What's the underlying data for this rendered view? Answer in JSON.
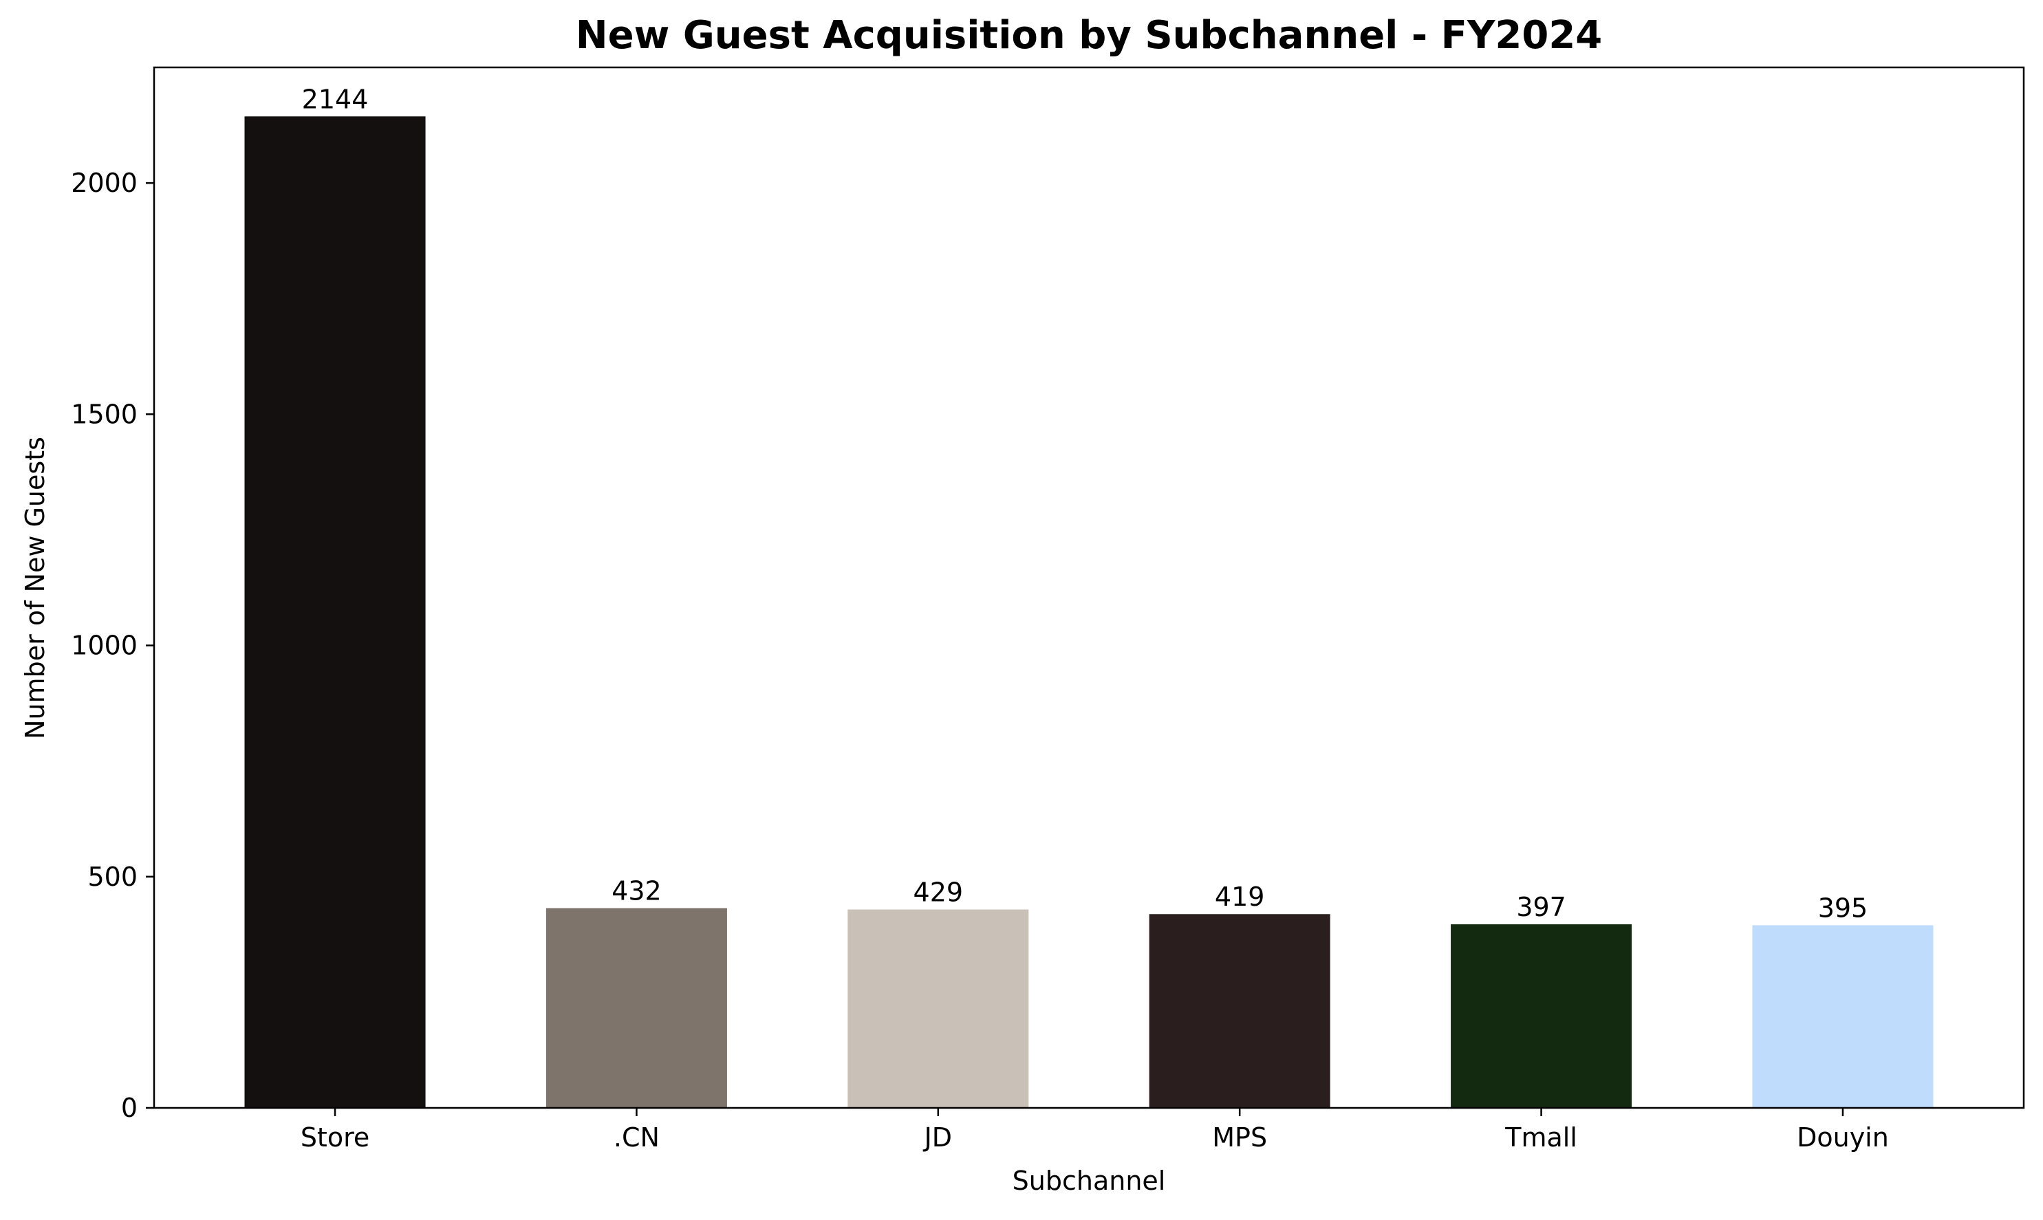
{
  "chart_data": {
    "type": "bar",
    "title": "New Guest Acquisition by Subchannel - FY2024",
    "xlabel": "Subchannel",
    "ylabel": "Number of New Guests",
    "categories": [
      "Store",
      ".CN",
      "JD",
      "MPS",
      "Tmall",
      "Douyin"
    ],
    "values": [
      2144,
      432,
      429,
      419,
      397,
      395
    ],
    "data_labels": [
      "2144",
      "432",
      "429",
      "419",
      "397",
      "395"
    ],
    "colors": [
      "#141010",
      "#7f746b",
      "#c9c1b8",
      "#2a1f1e",
      "#142a10",
      "#c0dcfc"
    ],
    "ylim": [
      0,
      2250
    ],
    "yticks": [
      0,
      500,
      1000,
      1500,
      2000
    ],
    "ytick_labels": [
      "0",
      "500",
      "1000",
      "1500",
      "2000"
    ],
    "grid": false,
    "legend": "none"
  }
}
